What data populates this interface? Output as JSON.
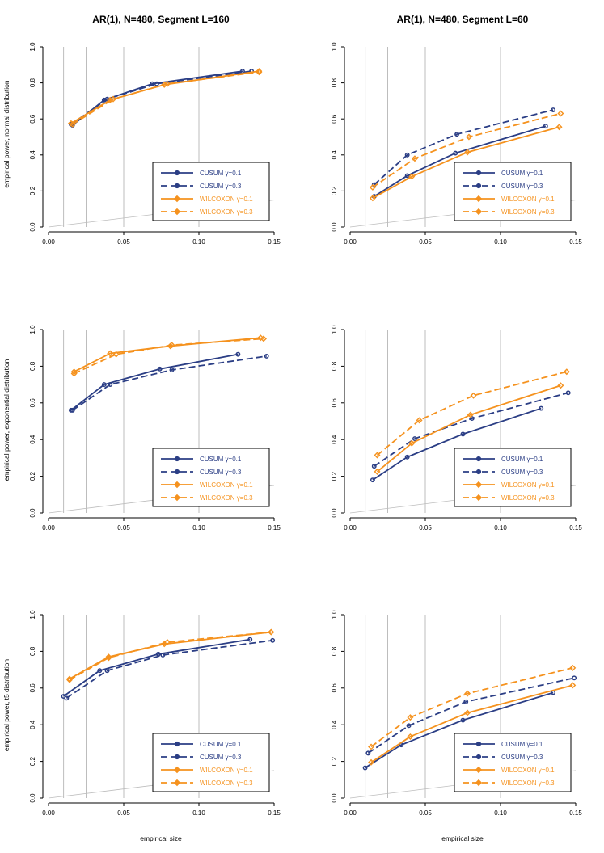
{
  "colors": {
    "cusum": "#2b3e85",
    "wilcoxon": "#f5921e",
    "grid": "#bdbdbd",
    "diag": "#bdbdbd"
  },
  "column_titles": [
    "AR(1), N=480, Segment L=160",
    "AR(1), N=480, Segment L=60"
  ],
  "row_ylabels": [
    "empirical power, normal distribution",
    "empirical power, exponential distribution",
    "empirical power, t5 distribution"
  ],
  "xlabel": "empirical size",
  "legend": [
    {
      "name": "CUSUM",
      "gamma": "γ=0.1",
      "method": "cusum",
      "dash": false
    },
    {
      "name": "CUSUM",
      "gamma": "γ=0.3",
      "method": "cusum",
      "dash": true
    },
    {
      "name": "WILCOXON",
      "gamma": "γ=0.1",
      "method": "wilcoxon",
      "dash": false
    },
    {
      "name": "WILCOXON",
      "gamma": "γ=0.3",
      "method": "wilcoxon",
      "dash": true
    }
  ],
  "chart_data": [
    {
      "type": "line",
      "title": "AR(1), N=480, Segment L=160",
      "ylabel": "empirical power, normal distribution",
      "xlabel": "",
      "xlim": [
        0,
        0.15
      ],
      "ylim": [
        0,
        1
      ],
      "xticks": [
        "0.00",
        "0.05",
        "0.10",
        "0.15"
      ],
      "yticks": [
        "0.0",
        "0.2",
        "0.4",
        "0.6",
        "0.8",
        "1.0"
      ],
      "vlines": [
        0.01,
        0.025,
        0.05,
        0.1
      ],
      "series": [
        {
          "name": "CUSUM γ=0.1",
          "method": "cusum",
          "dash": false,
          "x": [
            0.016,
            0.037,
            0.069,
            0.129
          ],
          "y": [
            0.565,
            0.705,
            0.795,
            0.865
          ]
        },
        {
          "name": "CUSUM γ=0.3",
          "method": "cusum",
          "dash": true,
          "x": [
            0.015,
            0.039,
            0.072,
            0.135
          ],
          "y": [
            0.57,
            0.71,
            0.795,
            0.865
          ]
        },
        {
          "name": "WILCOXON γ=0.1",
          "method": "wilcoxon",
          "dash": false,
          "x": [
            0.015,
            0.041,
            0.077,
            0.14
          ],
          "y": [
            0.575,
            0.705,
            0.79,
            0.865
          ]
        },
        {
          "name": "WILCOXON γ=0.3",
          "method": "wilcoxon",
          "dash": true,
          "x": [
            0.016,
            0.043,
            0.079,
            0.14
          ],
          "y": [
            0.57,
            0.71,
            0.795,
            0.86
          ]
        }
      ]
    },
    {
      "type": "line",
      "title": "AR(1), N=480, Segment L=60",
      "ylabel": "",
      "xlabel": "",
      "xlim": [
        0,
        0.15
      ],
      "ylim": [
        0,
        1
      ],
      "xticks": [
        "0.00",
        "0.05",
        "0.10",
        "0.15"
      ],
      "yticks": [
        "0.0",
        "0.2",
        "0.4",
        "0.6",
        "0.8",
        "1.0"
      ],
      "vlines": [
        0.01,
        0.025,
        0.05,
        0.1
      ],
      "series": [
        {
          "name": "CUSUM γ=0.1",
          "method": "cusum",
          "dash": false,
          "x": [
            0.016,
            0.038,
            0.07,
            0.13
          ],
          "y": [
            0.17,
            0.285,
            0.41,
            0.56
          ]
        },
        {
          "name": "CUSUM γ=0.3",
          "method": "cusum",
          "dash": true,
          "x": [
            0.016,
            0.038,
            0.071,
            0.135
          ],
          "y": [
            0.235,
            0.4,
            0.515,
            0.65
          ]
        },
        {
          "name": "WILCOXON γ=0.1",
          "method": "wilcoxon",
          "dash": false,
          "x": [
            0.015,
            0.041,
            0.078,
            0.139
          ],
          "y": [
            0.16,
            0.28,
            0.415,
            0.555
          ]
        },
        {
          "name": "WILCOXON γ=0.3",
          "method": "wilcoxon",
          "dash": true,
          "x": [
            0.015,
            0.043,
            0.079,
            0.14
          ],
          "y": [
            0.22,
            0.38,
            0.5,
            0.63
          ]
        }
      ]
    },
    {
      "type": "line",
      "title": "",
      "ylabel": "empirical power, exponential distribution",
      "xlabel": "",
      "xlim": [
        0,
        0.15
      ],
      "ylim": [
        0,
        1
      ],
      "xticks": [
        "0.00",
        "0.05",
        "0.10",
        "0.15"
      ],
      "yticks": [
        "0.0",
        "0.2",
        "0.4",
        "0.6",
        "0.8",
        "1.0"
      ],
      "vlines": [
        0.01,
        0.025,
        0.05,
        0.1
      ],
      "series": [
        {
          "name": "CUSUM γ=0.1",
          "method": "cusum",
          "dash": false,
          "x": [
            0.015,
            0.037,
            0.074,
            0.126
          ],
          "y": [
            0.56,
            0.7,
            0.785,
            0.865
          ]
        },
        {
          "name": "CUSUM γ=0.3",
          "method": "cusum",
          "dash": true,
          "x": [
            0.016,
            0.041,
            0.082,
            0.145
          ],
          "y": [
            0.56,
            0.7,
            0.78,
            0.855
          ]
        },
        {
          "name": "WILCOXON γ=0.1",
          "method": "wilcoxon",
          "dash": false,
          "x": [
            0.017,
            0.041,
            0.081,
            0.141
          ],
          "y": [
            0.77,
            0.87,
            0.91,
            0.955
          ]
        },
        {
          "name": "WILCOXON γ=0.3",
          "method": "wilcoxon",
          "dash": true,
          "x": [
            0.017,
            0.045,
            0.082,
            0.143
          ],
          "y": [
            0.76,
            0.865,
            0.915,
            0.95
          ]
        }
      ]
    },
    {
      "type": "line",
      "title": "",
      "ylabel": "",
      "xlabel": "",
      "xlim": [
        0,
        0.15
      ],
      "ylim": [
        0,
        1
      ],
      "xticks": [
        "0.00",
        "0.05",
        "0.10",
        "0.15"
      ],
      "yticks": [
        "0.0",
        "0.2",
        "0.4",
        "0.6",
        "0.8",
        "1.0"
      ],
      "vlines": [
        0.01,
        0.025,
        0.05,
        0.1
      ],
      "series": [
        {
          "name": "CUSUM γ=0.1",
          "method": "cusum",
          "dash": false,
          "x": [
            0.015,
            0.038,
            0.075,
            0.127
          ],
          "y": [
            0.18,
            0.305,
            0.43,
            0.57
          ]
        },
        {
          "name": "CUSUM γ=0.3",
          "method": "cusum",
          "dash": true,
          "x": [
            0.016,
            0.043,
            0.081,
            0.145
          ],
          "y": [
            0.255,
            0.405,
            0.515,
            0.655
          ]
        },
        {
          "name": "WILCOXON γ=0.1",
          "method": "wilcoxon",
          "dash": false,
          "x": [
            0.018,
            0.041,
            0.08,
            0.14
          ],
          "y": [
            0.225,
            0.38,
            0.535,
            0.695
          ]
        },
        {
          "name": "WILCOXON γ=0.3",
          "method": "wilcoxon",
          "dash": true,
          "x": [
            0.018,
            0.046,
            0.082,
            0.144
          ],
          "y": [
            0.315,
            0.505,
            0.64,
            0.77
          ]
        }
      ]
    },
    {
      "type": "line",
      "title": "",
      "ylabel": "empirical power, t5 distribution",
      "xlabel": "empirical size",
      "xlim": [
        0,
        0.15
      ],
      "ylim": [
        0,
        1
      ],
      "xticks": [
        "0.00",
        "0.05",
        "0.10",
        "0.15"
      ],
      "yticks": [
        "0.0",
        "0.2",
        "0.4",
        "0.6",
        "0.8",
        "1.0"
      ],
      "vlines": [
        0.01,
        0.025,
        0.05,
        0.1
      ],
      "series": [
        {
          "name": "CUSUM γ=0.1",
          "method": "cusum",
          "dash": false,
          "x": [
            0.01,
            0.034,
            0.073,
            0.134
          ],
          "y": [
            0.555,
            0.695,
            0.785,
            0.865
          ]
        },
        {
          "name": "CUSUM γ=0.3",
          "method": "cusum",
          "dash": true,
          "x": [
            0.012,
            0.039,
            0.076,
            0.149
          ],
          "y": [
            0.545,
            0.695,
            0.78,
            0.86
          ]
        },
        {
          "name": "WILCOXON γ=0.1",
          "method": "wilcoxon",
          "dash": false,
          "x": [
            0.014,
            0.04,
            0.077,
            0.148
          ],
          "y": [
            0.65,
            0.77,
            0.84,
            0.905
          ]
        },
        {
          "name": "WILCOXON γ=0.3",
          "method": "wilcoxon",
          "dash": true,
          "x": [
            0.014,
            0.04,
            0.079,
            0.148
          ],
          "y": [
            0.645,
            0.765,
            0.85,
            0.905
          ]
        }
      ]
    },
    {
      "type": "line",
      "title": "",
      "ylabel": "",
      "xlabel": "empirical size",
      "xlim": [
        0,
        0.15
      ],
      "ylim": [
        0,
        1
      ],
      "xticks": [
        "0.00",
        "0.05",
        "0.10",
        "0.15"
      ],
      "yticks": [
        "0.0",
        "0.2",
        "0.4",
        "0.6",
        "0.8",
        "1.0"
      ],
      "vlines": [
        0.01,
        0.025,
        0.05,
        0.1
      ],
      "series": [
        {
          "name": "CUSUM γ=0.1",
          "method": "cusum",
          "dash": false,
          "x": [
            0.01,
            0.034,
            0.075,
            0.135
          ],
          "y": [
            0.165,
            0.29,
            0.425,
            0.575
          ]
        },
        {
          "name": "CUSUM γ=0.3",
          "method": "cusum",
          "dash": true,
          "x": [
            0.012,
            0.039,
            0.077,
            0.149
          ],
          "y": [
            0.245,
            0.395,
            0.525,
            0.655
          ]
        },
        {
          "name": "WILCOXON γ=0.1",
          "method": "wilcoxon",
          "dash": false,
          "x": [
            0.014,
            0.04,
            0.078,
            0.148
          ],
          "y": [
            0.195,
            0.335,
            0.465,
            0.615
          ]
        },
        {
          "name": "WILCOXON γ=0.3",
          "method": "wilcoxon",
          "dash": true,
          "x": [
            0.014,
            0.04,
            0.078,
            0.148
          ],
          "y": [
            0.28,
            0.44,
            0.57,
            0.71
          ]
        }
      ]
    }
  ]
}
